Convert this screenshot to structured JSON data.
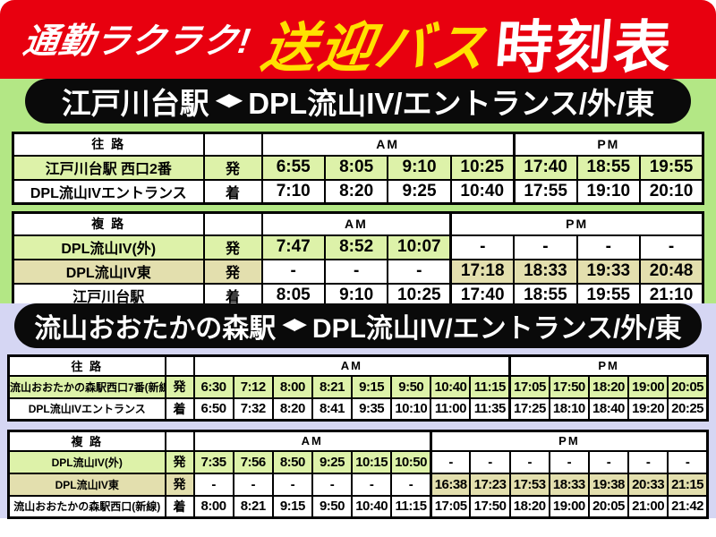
{
  "header": {
    "tagline": "通勤ラクラク!",
    "title_bus": "送迎バス",
    "title_timetable": "時刻表"
  },
  "sections": [
    {
      "banner": {
        "from": "江戸川台駅",
        "arrow": "◀▶",
        "to": "DPL流山IV/エントランス/外/東"
      },
      "tables": [
        {
          "direction_label": "往 路",
          "am_label": "AM",
          "pm_label": "PM",
          "am_cols": 4,
          "pm_cols": 3,
          "rows": [
            {
              "label": "江戸川台駅 西口2番",
              "dep_arr": "発",
              "color": "green",
              "times": [
                "6:55",
                "8:05",
                "9:10",
                "10:25",
                "17:40",
                "18:55",
                "19:55"
              ]
            },
            {
              "label": "DPL流山IVエントランス",
              "dep_arr": "着",
              "color": "white",
              "times": [
                "7:10",
                "8:20",
                "9:25",
                "10:40",
                "17:55",
                "19:10",
                "20:10"
              ]
            }
          ]
        },
        {
          "direction_label": "複 路",
          "am_label": "AM",
          "pm_label": "PM",
          "am_cols": 3,
          "pm_cols": 4,
          "rows": [
            {
              "label": "DPL流山IV(外)",
              "dep_arr": "発",
              "color": "green",
              "times": [
                "7:47",
                "8:52",
                "10:07",
                "-",
                "-",
                "-",
                "-"
              ]
            },
            {
              "label": "DPL流山IV東",
              "dep_arr": "発",
              "color": "tan",
              "times": [
                "-",
                "-",
                "-",
                "17:18",
                "18:33",
                "19:33",
                "20:48"
              ]
            },
            {
              "label": "江戸川台駅",
              "dep_arr": "着",
              "color": "white",
              "times": [
                "8:05",
                "9:10",
                "10:25",
                "17:40",
                "18:55",
                "19:55",
                "21:10"
              ]
            }
          ]
        }
      ]
    },
    {
      "banner": {
        "from": "流山おおたかの森駅",
        "arrow": "◀▶",
        "to": "DPL流山IV/エントランス/外/東"
      },
      "tables": [
        {
          "direction_label": "往 路",
          "am_label": "AM",
          "pm_label": "PM",
          "am_cols": 8,
          "pm_cols": 5,
          "rows": [
            {
              "label": "流山おおたかの森駅西口7番(新線)",
              "dep_arr": "発",
              "color": "green",
              "times": [
                "6:30",
                "7:12",
                "8:00",
                "8:21",
                "9:15",
                "9:50",
                "10:40",
                "11:15",
                "17:05",
                "17:50",
                "18:20",
                "19:00",
                "20:05"
              ]
            },
            {
              "label": "DPL流山IVエントランス",
              "dep_arr": "着",
              "color": "white",
              "times": [
                "6:50",
                "7:32",
                "8:20",
                "8:41",
                "9:35",
                "10:10",
                "11:00",
                "11:35",
                "17:25",
                "18:10",
                "18:40",
                "19:20",
                "20:25"
              ]
            }
          ]
        },
        {
          "direction_label": "複 路",
          "am_label": "AM",
          "pm_label": "PM",
          "am_cols": 6,
          "pm_cols": 7,
          "rows": [
            {
              "label": "DPL流山IV(外)",
              "dep_arr": "発",
              "color": "green",
              "times": [
                "7:35",
                "7:56",
                "8:50",
                "9:25",
                "10:15",
                "10:50",
                "-",
                "-",
                "-",
                "-",
                "-",
                "-",
                "-"
              ]
            },
            {
              "label": "DPL流山IV東",
              "dep_arr": "発",
              "color": "tan",
              "times": [
                "-",
                "-",
                "-",
                "-",
                "-",
                "-",
                "16:38",
                "17:23",
                "17:53",
                "18:33",
                "19:38",
                "20:33",
                "21:15"
              ]
            },
            {
              "label": "流山おおたかの森駅西口(新線)",
              "dep_arr": "着",
              "color": "white",
              "times": [
                "8:00",
                "8:21",
                "9:15",
                "9:50",
                "10:40",
                "11:15",
                "17:05",
                "17:50",
                "18:20",
                "19:00",
                "20:05",
                "21:00",
                "21:42"
              ]
            }
          ]
        }
      ]
    }
  ],
  "colors": {
    "banner_red": "#e8000f",
    "accent_yellow": "#ffe100",
    "section1_bg": "#b3e785",
    "section2_bg": "#d5d6f3",
    "cell_green": "#ddf2a9",
    "cell_tan": "#e3dfae",
    "banner_black": "#0a0a0a"
  }
}
